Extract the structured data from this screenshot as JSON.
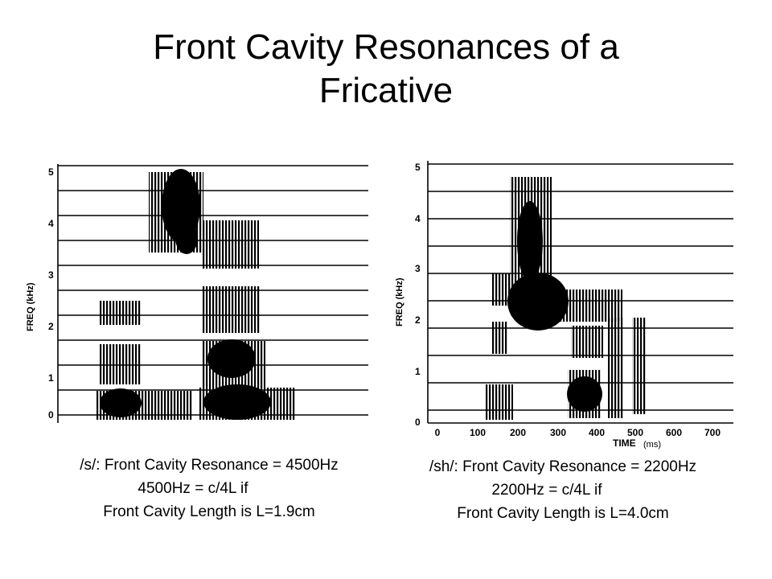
{
  "slide": {
    "title_line1": "Front Cavity Resonances of a",
    "title_line2": "Fricative"
  },
  "left_panel": {
    "ylabel": "FREQ (kHz)",
    "yticks": [
      "0",
      "1",
      "2",
      "3",
      "4",
      "5"
    ],
    "caption": {
      "line1": "/s/: Front Cavity Resonance = 4500Hz",
      "line2": "4500Hz = c/4L   if",
      "line3": "Front Cavity Length is L=1.9cm"
    }
  },
  "right_panel": {
    "ylabel": "FREQ (kHz)",
    "yticks": [
      "0",
      "1",
      "2",
      "3",
      "4",
      "5"
    ],
    "xticks": [
      "0",
      "100",
      "200",
      "300",
      "400",
      "500",
      "600",
      "700"
    ],
    "xlabel": "TIME",
    "xunit": "(ms)",
    "caption": {
      "line1": "/sh/: Front Cavity Resonance = 2200Hz",
      "line2": "2200Hz = c/4L   if",
      "line3": "Front Cavity Length is L=4.0cm"
    }
  }
}
